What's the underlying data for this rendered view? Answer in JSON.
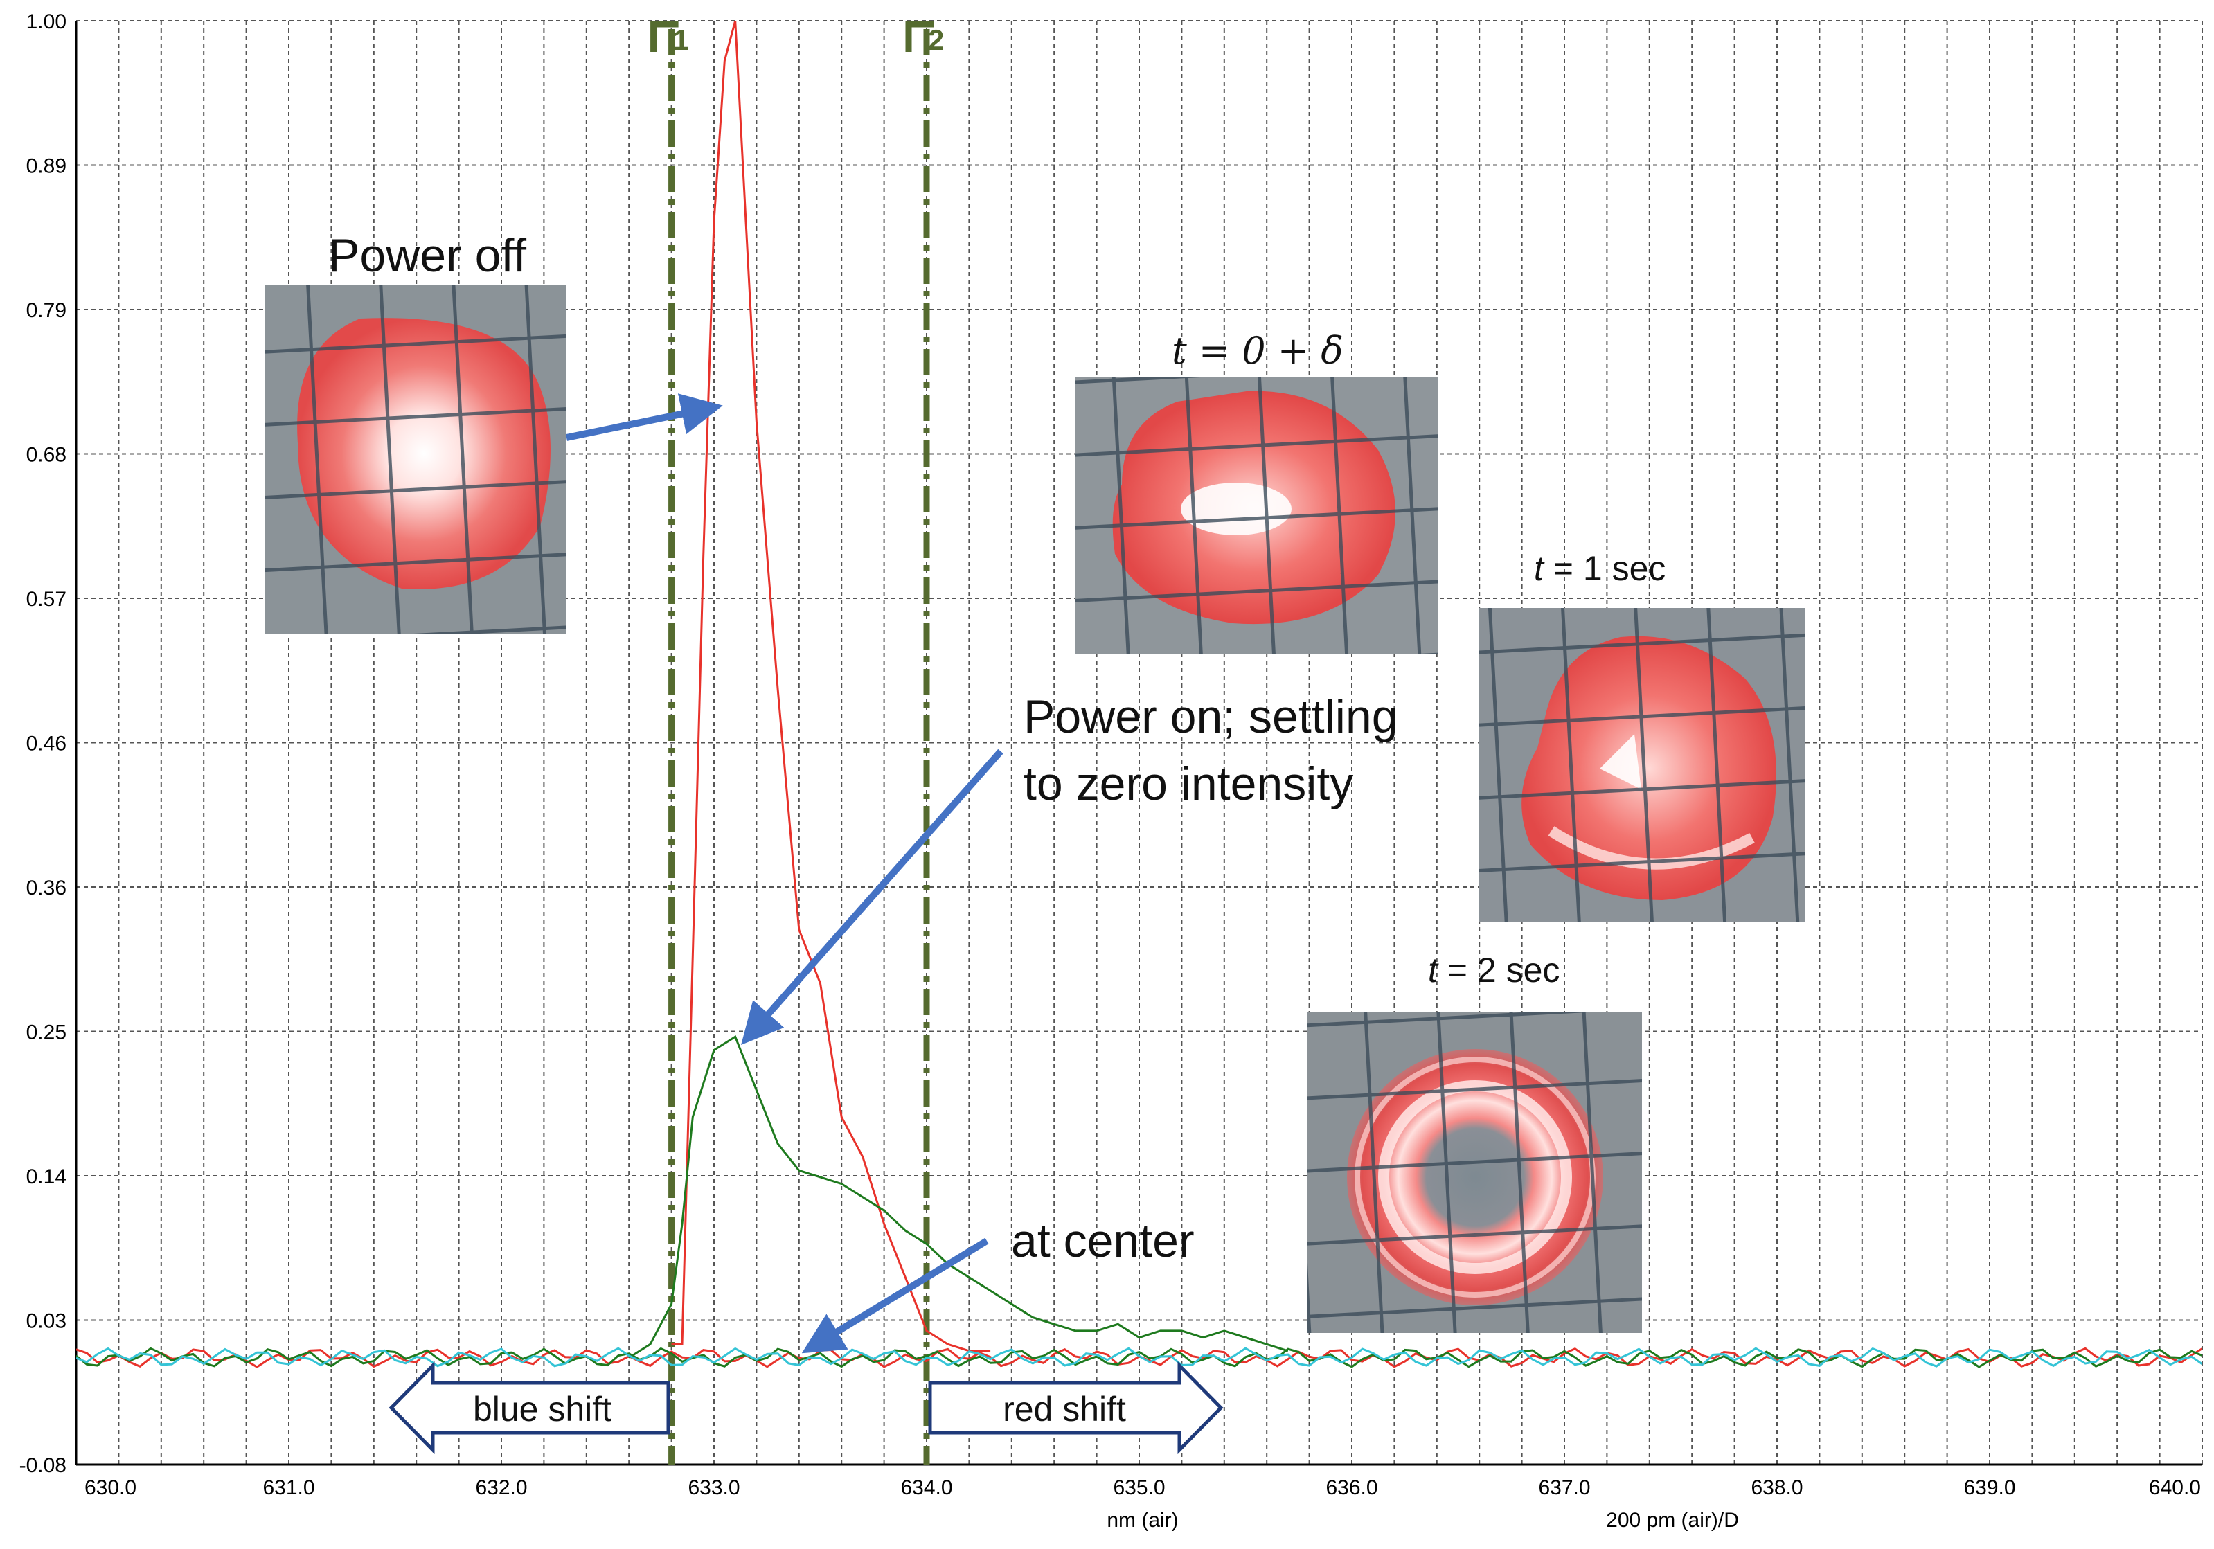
{
  "chart_data": {
    "type": "line",
    "xlabel": "nm (air)",
    "resolution_label": "200 pm (air)/D",
    "xlim": [
      630.0,
      640.0
    ],
    "ylim": [
      -0.08,
      1.0
    ],
    "x_ticks": [
      "630.0",
      "631.0",
      "632.0",
      "633.0",
      "634.0",
      "635.0",
      "636.0",
      "637.0",
      "638.0",
      "639.0",
      "640.0"
    ],
    "y_ticks": [
      "1.00",
      "0.89",
      "0.79",
      "0.68",
      "0.57",
      "0.46",
      "0.36",
      "0.25",
      "0.14",
      "0.03",
      "-0.08"
    ],
    "cursors": [
      {
        "label": "1",
        "x": 632.8
      },
      {
        "label": "2",
        "x": 634.0
      }
    ],
    "series": [
      {
        "color": "#e8322b",
        "x": [
          632.8,
          632.85,
          632.9,
          632.95,
          633.0,
          633.05,
          633.1,
          633.15,
          633.2,
          633.3,
          633.4,
          633.5,
          633.6,
          633.7,
          633.8,
          633.9,
          634.0,
          634.1,
          634.2,
          634.3
        ],
        "y": [
          0.01,
          0.01,
          0.3,
          0.6,
          0.85,
          0.97,
          1.0,
          0.85,
          0.7,
          0.5,
          0.32,
          0.28,
          0.18,
          0.15,
          0.1,
          0.06,
          0.02,
          0.01,
          0.005,
          0.005
        ]
      },
      {
        "color": "#1e7a1e",
        "x": [
          632.6,
          632.7,
          632.8,
          632.85,
          632.9,
          633.0,
          633.1,
          633.2,
          633.3,
          633.4,
          633.5,
          633.6,
          633.7,
          633.8,
          633.9,
          634.0,
          634.1,
          634.2,
          634.3,
          634.4,
          634.5,
          634.6,
          634.7,
          634.8,
          634.9,
          635.0,
          635.1,
          635.2,
          635.3,
          635.4,
          635.5,
          635.6,
          635.7
        ],
        "y": [
          0.0,
          0.01,
          0.04,
          0.1,
          0.18,
          0.23,
          0.24,
          0.2,
          0.16,
          0.14,
          0.135,
          0.13,
          0.12,
          0.11,
          0.095,
          0.085,
          0.07,
          0.06,
          0.05,
          0.04,
          0.03,
          0.025,
          0.02,
          0.02,
          0.025,
          0.015,
          0.02,
          0.02,
          0.015,
          0.02,
          0.015,
          0.01,
          0.005
        ]
      },
      {
        "color": "#35c4d6",
        "x": [
          630.0,
          640.0
        ],
        "y": [
          0.0,
          0.0
        ]
      }
    ]
  },
  "annotations": {
    "power_off": "Power off",
    "power_on_line1": "Power on; settling",
    "power_on_line2": "to zero intensity",
    "at_center": "at center",
    "t0_label": "t = 0 +  δ",
    "t1_var": "t",
    "t1_rest": " = 1 sec",
    "t2_var": "t",
    "t2_rest": " = 2 sec",
    "blue_shift": "blue shift",
    "red_shift": "red shift"
  },
  "colors": {
    "arrow": "#4472c4",
    "cursor": "#556b2f",
    "shift_arrow": "#1f3a7a"
  }
}
